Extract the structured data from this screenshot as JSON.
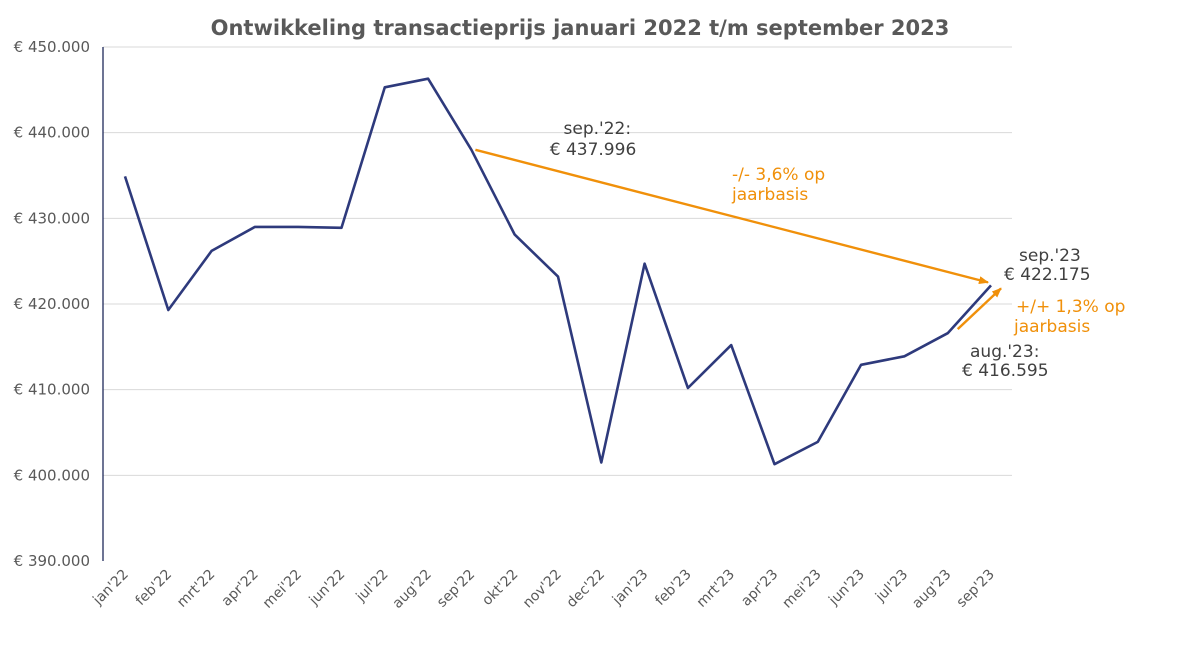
{
  "chart_data": {
    "type": "line",
    "title": "Ontwikkeling transactieprijs januari 2022 t/m september 2023",
    "xlabel": "",
    "ylabel": "",
    "ylim": [
      390000,
      450000
    ],
    "grid": true,
    "y_ticks": [
      {
        "value": 450000,
        "label": "€ 450.000"
      },
      {
        "value": 440000,
        "label": "€ 440.000"
      },
      {
        "value": 430000,
        "label": "€ 430.000"
      },
      {
        "value": 420000,
        "label": "€ 420.000"
      },
      {
        "value": 410000,
        "label": "€ 410.000"
      },
      {
        "value": 400000,
        "label": "€ 400.000"
      },
      {
        "value": 390000,
        "label": "€ 390.000"
      }
    ],
    "categories": [
      "jan'22",
      "feb'22",
      "mrt'22",
      "apr'22",
      "mei'22",
      "jun'22",
      "jul'22",
      "aug'22",
      "sep'22",
      "okt'22",
      "nov'22",
      "dec'22",
      "jan'23",
      "feb'23",
      "mrt'23",
      "apr'23",
      "mei'23",
      "jun'23",
      "jul'23",
      "aug'23",
      "sep'23"
    ],
    "series": [
      {
        "name": "",
        "color": "#2e3a7c",
        "values": [
          434900,
          419300,
          426200,
          429000,
          429000,
          428900,
          445300,
          446300,
          437996,
          428100,
          423200,
          401500,
          424700,
          410200,
          415200,
          401300,
          403900,
          412900,
          413900,
          416595,
          422175
        ]
      }
    ],
    "annotations": [
      {
        "lines": [
          "sep.'22:",
          "€ 437.996"
        ],
        "color": "#404040"
      },
      {
        "lines": [
          "-/- 3,6% op",
          "jaarbasis"
        ],
        "color": "#f0900a"
      },
      {
        "lines": [
          "sep.'23",
          "€ 422.175"
        ],
        "color": "#404040"
      },
      {
        "lines": [
          "+/+ 1,3% op",
          "jaarbasis"
        ],
        "color": "#f0900a"
      },
      {
        "lines": [
          "aug.'23:",
          "€ 416.595"
        ],
        "color": "#404040"
      }
    ],
    "arrow_color": "#f0900a",
    "axis_color": "#1f2a5a",
    "grid_color": "#d9d9d9"
  }
}
